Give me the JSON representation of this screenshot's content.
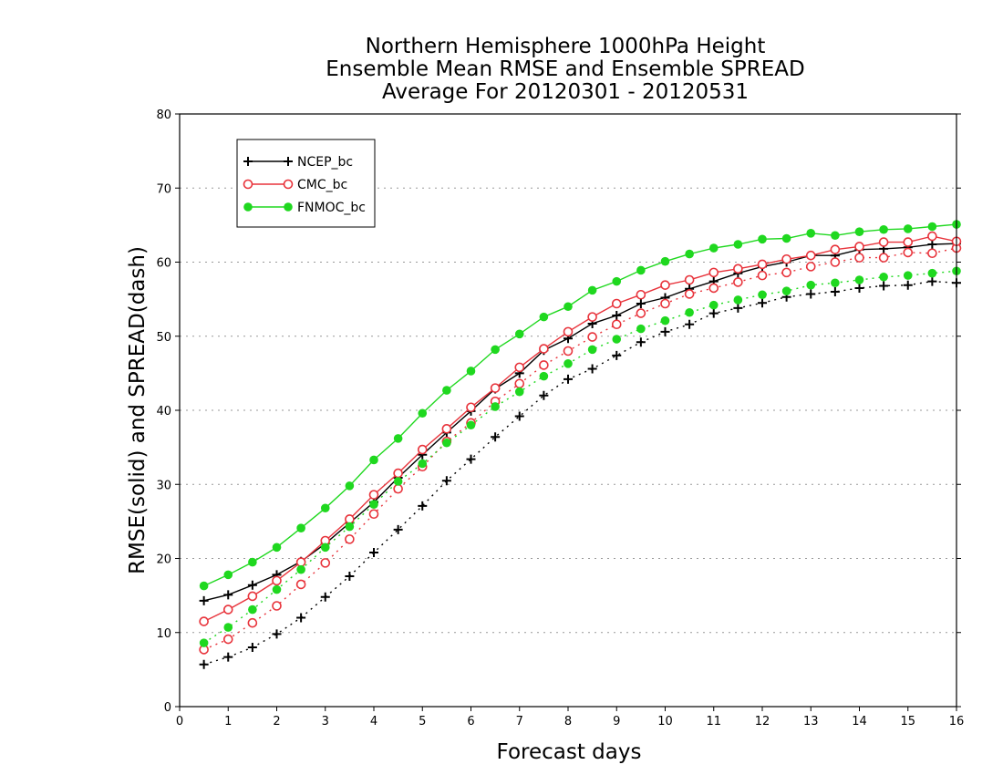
{
  "chart_data": {
    "type": "line",
    "title": [
      "Northern Hemisphere 1000hPa Height",
      "Ensemble Mean RMSE and Ensemble SPREAD",
      "Average For 20120301 - 20120531"
    ],
    "xlabel": "Forecast days",
    "ylabel": "RMSE(solid) and SPREAD(dash)",
    "xlim": [
      0,
      16
    ],
    "ylim": [
      0,
      80
    ],
    "xticks": [
      0,
      1,
      2,
      3,
      4,
      5,
      6,
      7,
      8,
      9,
      10,
      11,
      12,
      13,
      14,
      15,
      16
    ],
    "yticks": [
      0,
      10,
      20,
      30,
      40,
      50,
      60,
      70,
      80
    ],
    "grid": true,
    "legend_position": "top-left",
    "x": [
      0.5,
      1,
      1.5,
      2,
      2.5,
      3,
      3.5,
      4,
      4.5,
      5,
      5.5,
      6,
      6.5,
      7,
      7.5,
      8,
      8.5,
      9,
      9.5,
      10,
      10.5,
      11,
      11.5,
      12,
      12.5,
      13,
      13.5,
      14,
      14.5,
      15,
      15.5,
      16
    ],
    "series": [
      {
        "name": "NCEP_bc",
        "color": "#000000",
        "marker": "plus",
        "rmse": [
          14.3,
          15.1,
          16.4,
          17.8,
          19.6,
          22.0,
          24.8,
          27.6,
          30.9,
          34.0,
          37.0,
          39.9,
          42.9,
          45.0,
          48.1,
          49.7,
          51.7,
          52.8,
          54.4,
          55.2,
          56.4,
          57.4,
          58.5,
          59.4,
          60.0,
          60.9,
          60.9,
          61.7,
          61.8,
          62.0,
          62.4,
          62.5
        ],
        "spread": [
          5.7,
          6.7,
          8.0,
          9.8,
          12.0,
          14.8,
          17.6,
          20.8,
          23.9,
          27.1,
          30.5,
          33.4,
          36.4,
          39.2,
          42.0,
          44.2,
          45.6,
          47.4,
          49.2,
          50.6,
          51.6,
          53.1,
          53.8,
          54.5,
          55.3,
          55.7,
          56.0,
          56.5,
          56.8,
          56.9,
          57.4,
          57.2
        ]
      },
      {
        "name": "CMC_bc",
        "color": "#e8333b",
        "marker": "open-circle",
        "rmse": [
          11.5,
          13.1,
          14.9,
          17.0,
          19.5,
          22.4,
          25.3,
          28.6,
          31.5,
          34.7,
          37.5,
          40.4,
          43.0,
          45.8,
          48.3,
          50.6,
          52.6,
          54.4,
          55.6,
          56.9,
          57.6,
          58.6,
          59.1,
          59.7,
          60.4,
          60.9,
          61.7,
          62.1,
          62.7,
          62.7,
          63.5,
          62.8
        ],
        "spread": [
          7.7,
          9.1,
          11.3,
          13.6,
          16.5,
          19.4,
          22.6,
          26.0,
          29.4,
          32.4,
          35.8,
          38.3,
          41.2,
          43.6,
          46.1,
          48.0,
          49.9,
          51.6,
          53.1,
          54.4,
          55.7,
          56.5,
          57.3,
          58.2,
          58.6,
          59.4,
          60.0,
          60.6,
          60.6,
          61.3,
          61.2,
          61.9
        ]
      },
      {
        "name": "FNMOC_bc",
        "color": "#1fd81f",
        "marker": "filled-circle",
        "rmse": [
          16.3,
          17.8,
          19.5,
          21.5,
          24.1,
          26.8,
          29.8,
          33.3,
          36.2,
          39.6,
          42.7,
          45.3,
          48.2,
          50.3,
          52.6,
          54.0,
          56.2,
          57.4,
          58.9,
          60.1,
          61.1,
          61.9,
          62.4,
          63.1,
          63.2,
          63.9,
          63.6,
          64.1,
          64.4,
          64.5,
          64.8,
          65.1
        ],
        "spread": [
          8.6,
          10.7,
          13.1,
          15.8,
          18.5,
          21.5,
          24.3,
          27.3,
          30.4,
          32.8,
          35.6,
          38.0,
          40.5,
          42.5,
          44.6,
          46.3,
          48.2,
          49.6,
          51.0,
          52.1,
          53.2,
          54.2,
          54.9,
          55.6,
          56.1,
          56.9,
          57.2,
          57.6,
          58.0,
          58.2,
          58.5,
          58.8
        ]
      }
    ]
  }
}
